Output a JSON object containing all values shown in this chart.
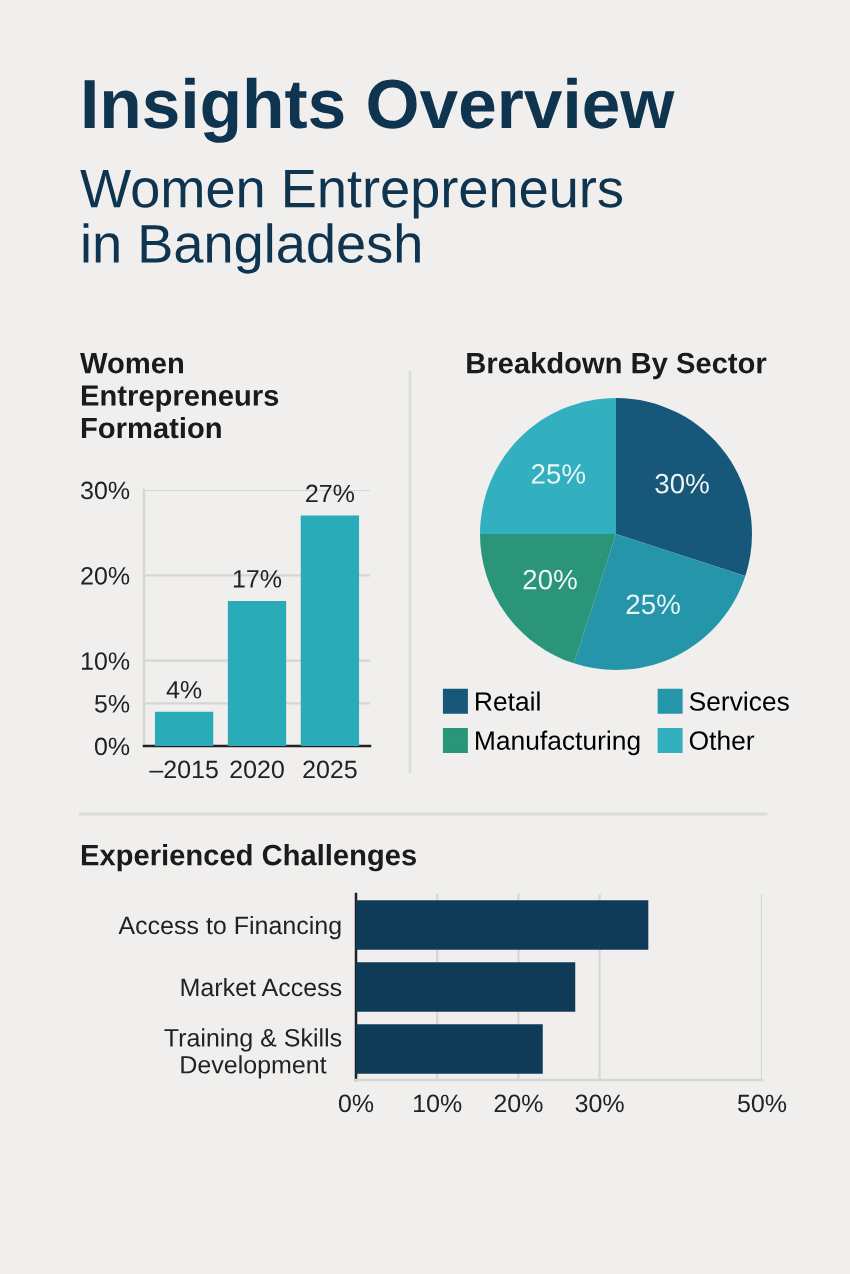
{
  "chart_data": [
    {
      "type": "other",
      "title": "Insights Overview",
      "subtitle": "Women Entrepreneurs in Bangladesh"
    },
    {
      "type": "bar",
      "title": "Women Entrepreneurs Formation",
      "categories": [
        "–2015",
        "2020",
        "2025"
      ],
      "values": [
        4,
        17,
        27
      ],
      "value_labels": [
        "4%",
        "17%",
        "27%"
      ],
      "color": "#2aacb8",
      "ylim": [
        0,
        30
      ],
      "yticks": [
        {
          "value": 0,
          "label": "0%"
        },
        {
          "value": 5,
          "label": "5%"
        },
        {
          "value": 10,
          "label": "10%"
        },
        {
          "value": 20,
          "label": "20%"
        },
        {
          "value": 30,
          "label": "30%"
        }
      ],
      "grid": "y"
    },
    {
      "type": "pie",
      "title": "Breakdown By Sector",
      "categories": [
        "Retail",
        "Services",
        "Manufacturing",
        "Other"
      ],
      "values": [
        30,
        25,
        20,
        25
      ],
      "value_labels": [
        "30%",
        "25%",
        "20%",
        "25%"
      ],
      "colors": [
        "#17587a",
        "#2596aa",
        "#2a9578",
        "#33b0c0"
      ],
      "legend": "bottom"
    },
    {
      "type": "bar",
      "orientation": "horizontal",
      "title": "Experienced Challenges",
      "categories": [
        "Access to Financing",
        "Market Access",
        "Training & Skills Development"
      ],
      "values": [
        36,
        27,
        23
      ],
      "color": "#0f3a58",
      "xlim": [
        0,
        50
      ],
      "xticks": [
        {
          "value": 0,
          "label": "0%"
        },
        {
          "value": 10,
          "label": "10%"
        },
        {
          "value": 20,
          "label": "20%"
        },
        {
          "value": 30,
          "label": "30%"
        },
        {
          "value": 50,
          "label": "50%"
        }
      ],
      "grid": "x"
    }
  ]
}
